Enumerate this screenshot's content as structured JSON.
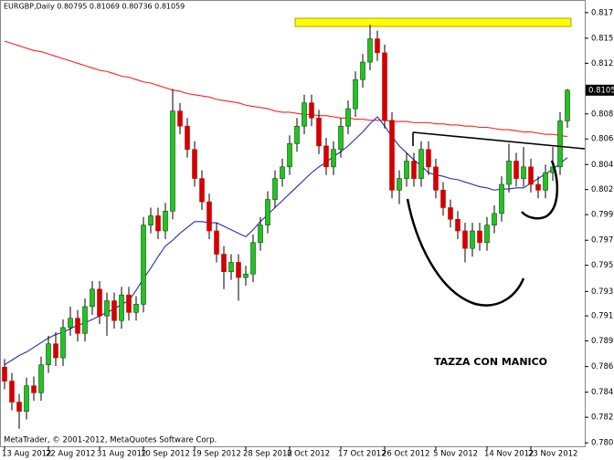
{
  "chart_data": {
    "type": "candlestick",
    "title": "EURGBP,Daily  0.80795 0.81069 0.80736 0.81059",
    "annotations": [
      "TAZZA CON MANICO",
      "MetaTrader, © 2001-2012, MetaQuotes Software Corp."
    ],
    "categories": [
      "13 Aug 2012",
      null,
      null,
      null,
      null,
      null,
      "22 Aug 2012",
      null,
      null,
      null,
      null,
      null,
      null,
      "31 Aug 2012",
      null,
      null,
      null,
      null,
      null,
      "10 Sep 2012",
      null,
      null,
      null,
      null,
      null,
      null,
      "19 Sep 2012",
      null,
      null,
      null,
      null,
      null,
      null,
      "28 Sep 2012",
      null,
      null,
      null,
      null,
      null,
      "8 Oct 2012",
      null,
      null,
      null,
      null,
      null,
      null,
      "17 Oct 2012",
      null,
      null,
      null,
      null,
      null,
      "26 Oct 2012",
      null,
      null,
      null,
      null,
      null,
      null,
      "5 Nov 2012",
      null,
      null,
      null,
      null,
      null,
      null,
      "14 Nov 2012",
      null,
      null,
      null,
      null,
      null,
      "23 Nov 2012",
      null,
      null,
      null,
      null,
      null
    ],
    "open": [
      0.7868,
      0.7856,
      0.7838,
      0.783,
      0.7852,
      0.7846,
      0.787,
      0.7888,
      0.7876,
      0.7902,
      0.791,
      0.7897,
      0.792,
      0.7935,
      0.7912,
      0.7925,
      0.7908,
      0.793,
      0.7915,
      0.7922,
      0.799,
      0.7998,
      0.7985,
      0.8002,
      0.8088,
      0.8075,
      0.8055,
      0.803,
      0.801,
      0.7985,
      0.7965,
      0.795,
      0.7958,
      0.7945,
      0.7948,
      0.7975,
      0.799,
      0.8012,
      0.803,
      0.804,
      0.806,
      0.8075,
      0.8095,
      0.8082,
      0.8058,
      0.804,
      0.8055,
      0.8075,
      0.809,
      0.8115,
      0.813,
      0.815,
      0.8138,
      0.808,
      0.802,
      0.803,
      0.8045,
      0.803,
      0.8055,
      0.804,
      0.802,
      0.8005,
      0.7995,
      0.7985,
      0.797,
      0.7985,
      0.7975,
      0.799,
      0.8,
      0.8025,
      0.8045,
      0.803,
      0.804,
      0.8025,
      0.802,
      0.8035,
      0.804,
      0.80795
    ],
    "high": [
      0.7875,
      0.7863,
      0.7845,
      0.7859,
      0.786,
      0.7877,
      0.7895,
      0.7898,
      0.7909,
      0.792,
      0.7917,
      0.7927,
      0.7942,
      0.7942,
      0.7932,
      0.7932,
      0.7937,
      0.7937,
      0.7929,
      0.7997,
      0.8005,
      0.8005,
      0.8009,
      0.8107,
      0.8095,
      0.8082,
      0.8062,
      0.8037,
      0.8017,
      0.7992,
      0.7972,
      0.7965,
      0.7965,
      0.7955,
      0.7982,
      0.7997,
      0.8019,
      0.8037,
      0.8047,
      0.8067,
      0.8082,
      0.8102,
      0.8102,
      0.8089,
      0.8065,
      0.8062,
      0.8082,
      0.8097,
      0.8122,
      0.8137,
      0.8162,
      0.8157,
      0.8145,
      0.8087,
      0.8037,
      0.8052,
      0.8052,
      0.8062,
      0.8062,
      0.8047,
      0.8027,
      0.8012,
      0.8002,
      0.7992,
      0.7992,
      0.7992,
      0.7997,
      0.8007,
      0.8032,
      0.806,
      0.8052,
      0.8057,
      0.8047,
      0.8032,
      0.8042,
      0.8057,
      0.8087,
      0.81069
    ],
    "low": [
      0.7849,
      0.7831,
      0.7815,
      0.7823,
      0.7839,
      0.7839,
      0.7863,
      0.7869,
      0.7869,
      0.7895,
      0.789,
      0.789,
      0.7913,
      0.7905,
      0.7895,
      0.7901,
      0.7901,
      0.7908,
      0.7908,
      0.7915,
      0.7983,
      0.7978,
      0.7978,
      0.7995,
      0.8068,
      0.8048,
      0.8023,
      0.8003,
      0.7978,
      0.7958,
      0.7935,
      0.7943,
      0.7925,
      0.7938,
      0.7941,
      0.7968,
      0.7983,
      0.8005,
      0.8023,
      0.8033,
      0.8053,
      0.8068,
      0.8075,
      0.8051,
      0.8033,
      0.8033,
      0.8048,
      0.8068,
      0.8083,
      0.8108,
      0.8123,
      0.8131,
      0.8073,
      0.8013,
      0.8008,
      0.8023,
      0.8023,
      0.8023,
      0.8033,
      0.8013,
      0.7998,
      0.7988,
      0.7978,
      0.7958,
      0.7963,
      0.7968,
      0.7968,
      0.7983,
      0.7993,
      0.8018,
      0.8023,
      0.8023,
      0.8018,
      0.8013,
      0.8013,
      0.8028,
      0.8033,
      0.80736
    ],
    "close": [
      0.7856,
      0.7838,
      0.783,
      0.7852,
      0.7846,
      0.787,
      0.7888,
      0.7876,
      0.7902,
      0.791,
      0.7897,
      0.792,
      0.7935,
      0.7912,
      0.7925,
      0.7908,
      0.793,
      0.7915,
      0.7922,
      0.799,
      0.7998,
      0.7985,
      0.8002,
      0.8088,
      0.8075,
      0.8055,
      0.803,
      0.801,
      0.7985,
      0.7965,
      0.795,
      0.7958,
      0.7945,
      0.7948,
      0.7975,
      0.799,
      0.8012,
      0.803,
      0.804,
      0.806,
      0.8075,
      0.8095,
      0.8082,
      0.8058,
      0.804,
      0.8055,
      0.8075,
      0.809,
      0.8115,
      0.813,
      0.815,
      0.8138,
      0.808,
      0.802,
      0.803,
      0.8045,
      0.803,
      0.8055,
      0.804,
      0.802,
      0.8005,
      0.7995,
      0.7985,
      0.797,
      0.7985,
      0.7975,
      0.799,
      0.8,
      0.8025,
      0.8045,
      0.803,
      0.804,
      0.8025,
      0.802,
      0.8035,
      0.804,
      0.80795,
      0.81059
    ],
    "up_color": "#22c322",
    "down_color": "#d40000",
    "moving_averages": [
      {
        "color": "#ff2020",
        "values": [
          0.8148,
          0.8146,
          0.8144,
          0.8142,
          0.814,
          0.8139,
          0.8137,
          0.8135,
          0.8133,
          0.8131,
          0.8129,
          0.8127,
          0.8125,
          0.8123,
          0.8122,
          0.812,
          0.8118,
          0.8117,
          0.8115,
          0.8113,
          0.8112,
          0.811,
          0.8108,
          0.8106,
          0.8105,
          0.8103,
          0.8102,
          0.8101,
          0.81,
          0.8098,
          0.8097,
          0.8096,
          0.8095,
          0.8093,
          0.8092,
          0.8091,
          0.809,
          0.8088,
          0.8087,
          0.8087,
          0.8086,
          0.8085,
          0.8085,
          0.8084,
          0.8084,
          0.8083,
          0.8082,
          0.8082,
          0.8081,
          0.8081,
          0.808,
          0.808,
          0.808,
          0.8079,
          0.8079,
          0.8079,
          0.8078,
          0.8078,
          0.8078,
          0.8077,
          0.8077,
          0.8076,
          0.8076,
          0.8075,
          0.8075,
          0.8074,
          0.8074,
          0.8073,
          0.8072,
          0.8072,
          0.8071,
          0.807,
          0.807,
          0.8069,
          0.8068,
          0.8068,
          0.8067,
          0.8066
        ]
      },
      {
        "color": "#2a2ab0",
        "values": [
          0.787,
          0.7874,
          0.7878,
          0.7881,
          0.7885,
          0.7889,
          0.7893,
          0.7896,
          0.7898,
          0.7901,
          0.7904,
          0.7906,
          0.7909,
          0.7912,
          0.7915,
          0.7918,
          0.7922,
          0.7925,
          0.7934,
          0.7944,
          0.7953,
          0.7963,
          0.7972,
          0.7977,
          0.7983,
          0.7988,
          0.7993,
          0.7993,
          0.7992,
          0.7992,
          0.7989,
          0.7986,
          0.7983,
          0.798,
          0.7986,
          0.7993,
          0.7999,
          0.8005,
          0.8011,
          0.8017,
          0.8023,
          0.8029,
          0.8035,
          0.804,
          0.8044,
          0.8049,
          0.8053,
          0.8058,
          0.8064,
          0.807,
          0.8077,
          0.8083,
          0.8075,
          0.8066,
          0.8058,
          0.8052,
          0.8046,
          0.8041,
          0.8035,
          0.8033,
          0.8032,
          0.803,
          0.8029,
          0.8027,
          0.8025,
          0.8023,
          0.8022,
          0.802,
          0.8021,
          0.8021,
          0.8022,
          0.8022,
          0.8026,
          0.803,
          0.8034,
          0.8038,
          0.8043,
          0.8048
        ]
      }
    ],
    "ylim": [
      0.78,
      0.8181
    ],
    "yticks": [
      0.81725,
      0.81505,
      {
        "value": 0.8129,
        "label": "0.81290"
      },
      0.80855,
      {
        "value": 0.8064,
        "label": "0.80640"
      },
      {
        "value": 0.8042,
        "label": "0.80420"
      },
      0.80205,
      {
        "value": 0.7999,
        "label": "0.79990"
      },
      {
        "value": 0.7977,
        "label": "0.79770"
      },
      0.79555,
      {
        "value": 0.7933,
        "label": "0.79330"
      },
      {
        "value": 0.7912,
        "label": "0.79120"
      },
      0.78905,
      0.78685,
      0.78465,
      {
        "value": 0.7825,
        "label": "0.78250"
      },
      {
        "value": 0.7803,
        "label": "0.78030"
      }
    ]
  }
}
